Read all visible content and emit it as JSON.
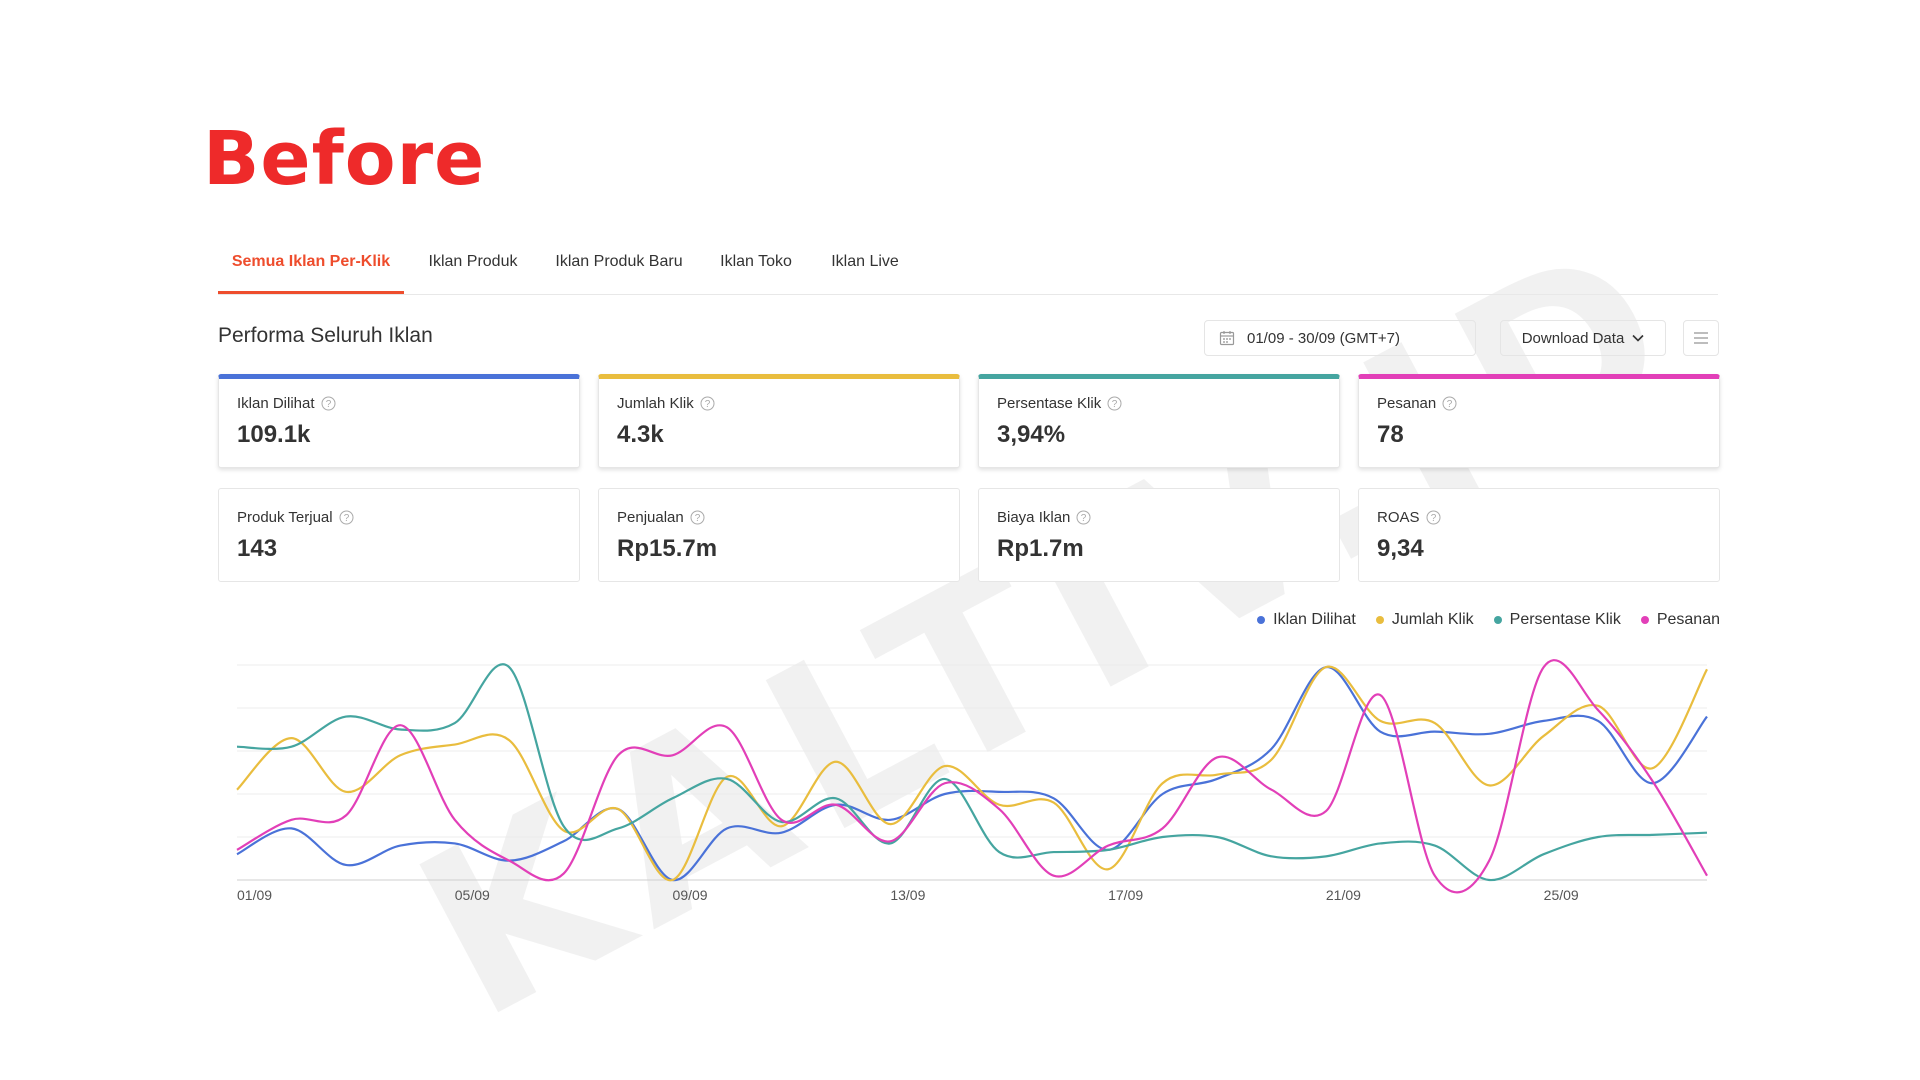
{
  "heading": "Before",
  "watermark": "KALTIV.ID",
  "tabs": [
    {
      "label": "Semua Iklan Per-Klik",
      "active": true
    },
    {
      "label": "Iklan Produk",
      "active": false
    },
    {
      "label": "Iklan Produk Baru",
      "active": false
    },
    {
      "label": "Iklan Toko",
      "active": false
    },
    {
      "label": "Iklan Live",
      "active": false
    }
  ],
  "section_title": "Performa Seluruh Iklan",
  "date_range": "01/09 - 30/09 (GMT+7)",
  "download_label": "Download Data",
  "metrics": [
    {
      "label": "Iklan Dilihat",
      "value": "109.1k",
      "color": "#4a72d8",
      "selected": true,
      "help": true
    },
    {
      "label": "Jumlah Klik",
      "value": "4.3k",
      "color": "#e9bd3e",
      "selected": true,
      "help": true
    },
    {
      "label": "Persentase Klik",
      "value": "3,94%",
      "color": "#45a5a0",
      "selected": true,
      "help": true
    },
    {
      "label": "Pesanan",
      "value": "78",
      "color": "#e23fb8",
      "selected": true,
      "help": true
    },
    {
      "label": "Produk Terjual",
      "value": "143",
      "selected": false,
      "help": true
    },
    {
      "label": "Penjualan",
      "value": "Rp15.7m",
      "selected": false,
      "help": true
    },
    {
      "label": "Biaya Iklan",
      "value": "Rp1.7m",
      "selected": false,
      "help": true
    },
    {
      "label": "ROAS",
      "value": "9,34",
      "selected": false,
      "help": true
    }
  ],
  "legend": [
    {
      "label": "Iklan Dilihat",
      "color": "#4a72d8"
    },
    {
      "label": "Jumlah Klik",
      "color": "#e9bd3e"
    },
    {
      "label": "Persentase Klik",
      "color": "#45a5a0"
    },
    {
      "label": "Pesanan",
      "color": "#e23fb8"
    }
  ],
  "chart_data": {
    "type": "line",
    "x": [
      "01/09",
      "02/09",
      "03/09",
      "04/09",
      "05/09",
      "06/09",
      "07/09",
      "08/09",
      "09/09",
      "10/09",
      "11/09",
      "12/09",
      "13/09",
      "14/09",
      "15/09",
      "16/09",
      "17/09",
      "18/09",
      "19/09",
      "20/09",
      "21/09",
      "22/09",
      "23/09",
      "24/09",
      "25/09",
      "26/09",
      "27/09",
      "28/09"
    ],
    "xticks": [
      "01/09",
      "05/09",
      "09/09",
      "13/09",
      "17/09",
      "21/09",
      "25/09"
    ],
    "y_range": [
      0,
      1
    ],
    "grid": true,
    "legend_position": "top-right",
    "series": [
      {
        "name": "Iklan Dilihat",
        "color": "#4a72d8",
        "values": [
          0.12,
          0.24,
          0.07,
          0.16,
          0.17,
          0.09,
          0.18,
          0.33,
          0.0,
          0.24,
          0.22,
          0.35,
          0.28,
          0.4,
          0.41,
          0.38,
          0.14,
          0.4,
          0.47,
          0.61,
          0.99,
          0.69,
          0.69,
          0.68,
          0.74,
          0.74,
          0.45,
          0.76
        ]
      },
      {
        "name": "Jumlah Klik",
        "color": "#e9bd3e",
        "values": [
          0.42,
          0.66,
          0.41,
          0.58,
          0.63,
          0.65,
          0.23,
          0.33,
          0.0,
          0.48,
          0.25,
          0.55,
          0.26,
          0.53,
          0.35,
          0.36,
          0.05,
          0.45,
          0.49,
          0.56,
          0.99,
          0.74,
          0.73,
          0.44,
          0.67,
          0.81,
          0.52,
          0.98
        ]
      },
      {
        "name": "Persentase Klik",
        "color": "#45a5a0",
        "values": [
          0.62,
          0.62,
          0.76,
          0.7,
          0.73,
          0.99,
          0.25,
          0.24,
          0.38,
          0.47,
          0.27,
          0.38,
          0.17,
          0.47,
          0.13,
          0.13,
          0.14,
          0.2,
          0.2,
          0.11,
          0.11,
          0.17,
          0.16,
          0.0,
          0.12,
          0.2,
          0.21,
          0.22
        ]
      },
      {
        "name": "Pesanan",
        "color": "#e23fb8",
        "values": [
          0.14,
          0.28,
          0.3,
          0.72,
          0.28,
          0.09,
          0.03,
          0.58,
          0.58,
          0.71,
          0.28,
          0.35,
          0.18,
          0.45,
          0.33,
          0.02,
          0.16,
          0.24,
          0.57,
          0.42,
          0.32,
          0.86,
          0.02,
          0.09,
          0.99,
          0.79,
          0.46,
          0.02
        ]
      }
    ]
  }
}
